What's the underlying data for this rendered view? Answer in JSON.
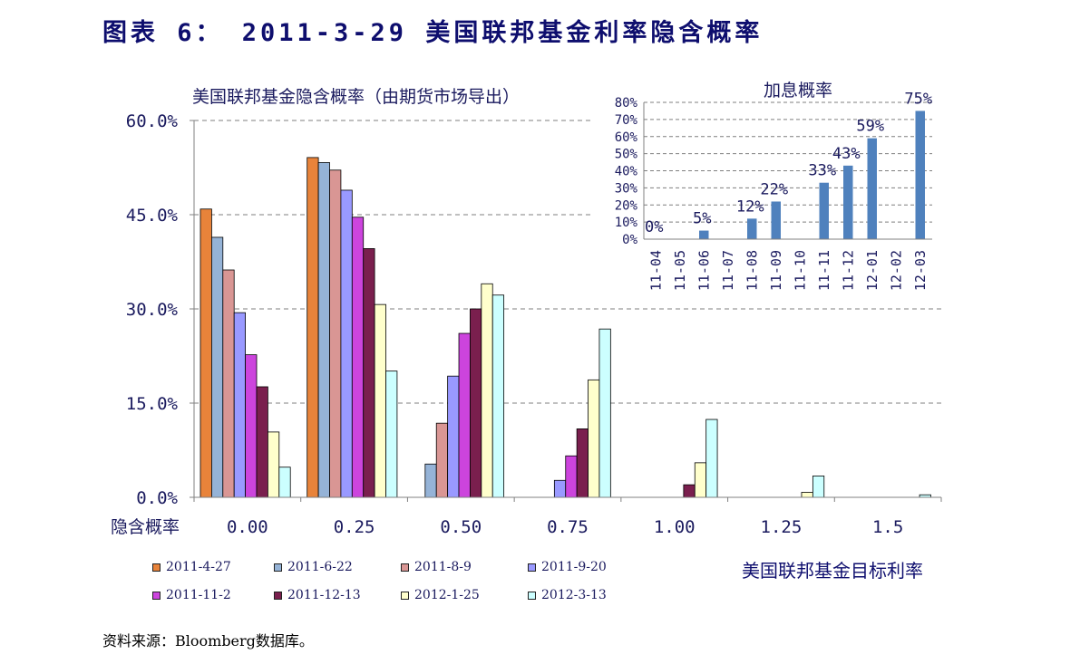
{
  "figure": {
    "title": "图表 6： 2011-3-29 美国联邦基金利率隐含概率",
    "source": "资料来源：Bloomberg数据库。",
    "right_xlabel": "美国联邦基金目标利率"
  },
  "colors": {
    "axis": "#808080",
    "grid": "#7f7f7f",
    "text": "#1a1a5e",
    "inset_bar": "#4f81bd"
  },
  "legend": [
    {
      "label": "2011-4-27",
      "color": "#e8833a"
    },
    {
      "label": "2011-6-22",
      "color": "#95b3d7"
    },
    {
      "label": "2011-8-9",
      "color": "#d99694"
    },
    {
      "label": "2011-9-20",
      "color": "#9999ff"
    },
    {
      "label": "2011-11-2",
      "color": "#cc44dd"
    },
    {
      "label": "2011-12-13",
      "color": "#7a1f4e"
    },
    {
      "label": "2012-1-25",
      "color": "#ffffcc"
    },
    {
      "label": "2012-3-13",
      "color": "#ccffff"
    }
  ],
  "chart_data": [
    {
      "type": "bar",
      "title": "美国联邦基金隐含概率（由期货市场导出）",
      "xlabel": "隐含概率",
      "ylabel": "",
      "categories": [
        "0.00",
        "0.25",
        "0.50",
        "0.75",
        "1.00",
        "1.25",
        "1.5"
      ],
      "ylim": [
        0,
        60
      ],
      "yticks": [
        0,
        15,
        30,
        45,
        60
      ],
      "ytick_labels": [
        "0.0%",
        "15.0%",
        "30.0%",
        "45.0%",
        "60.0%"
      ],
      "grid": true,
      "legend_position": "bottom",
      "series": [
        {
          "name": "2011-4-27",
          "values": [
            45.9,
            54.1,
            0,
            0,
            0,
            0,
            0
          ]
        },
        {
          "name": "2011-6-22",
          "values": [
            41.4,
            53.3,
            5.3,
            0,
            0,
            0,
            0
          ]
        },
        {
          "name": "2011-8-9",
          "values": [
            36.2,
            52.1,
            11.8,
            0,
            0,
            0,
            0
          ]
        },
        {
          "name": "2011-9-20",
          "values": [
            29.4,
            48.9,
            19.3,
            2.7,
            0,
            0,
            0
          ]
        },
        {
          "name": "2011-11-2",
          "values": [
            22.7,
            44.6,
            26.1,
            6.6,
            0,
            0,
            0
          ]
        },
        {
          "name": "2011-12-13",
          "values": [
            17.6,
            39.6,
            30.0,
            10.9,
            2.0,
            0,
            0
          ]
        },
        {
          "name": "2012-1-25",
          "values": [
            10.4,
            30.7,
            34.0,
            18.7,
            5.5,
            0.8,
            0
          ]
        },
        {
          "name": "2012-3-13",
          "values": [
            4.8,
            20.1,
            32.2,
            26.8,
            12.4,
            3.4,
            0.4
          ]
        }
      ]
    },
    {
      "type": "bar",
      "title": "加息概率",
      "categories": [
        "11-04",
        "11-05",
        "11-06",
        "11-07",
        "11-08",
        "11-09",
        "11-10",
        "11-11",
        "11-12",
        "12-01",
        "12-02",
        "12-03"
      ],
      "values": [
        0,
        0,
        5,
        0,
        12,
        22,
        0,
        33,
        43,
        59,
        0,
        75
      ],
      "data_labels": [
        "0%",
        "",
        "5%",
        "",
        "12%",
        "22%",
        "",
        "33%",
        "43%",
        "59%",
        "",
        "75%"
      ],
      "ylim": [
        0,
        80
      ],
      "yticks": [
        0,
        10,
        20,
        30,
        40,
        50,
        60,
        70,
        80
      ],
      "ytick_labels": [
        "0%",
        "10%",
        "20%",
        "30%",
        "40%",
        "50%",
        "60%",
        "70%",
        "80%"
      ],
      "grid": true
    }
  ]
}
